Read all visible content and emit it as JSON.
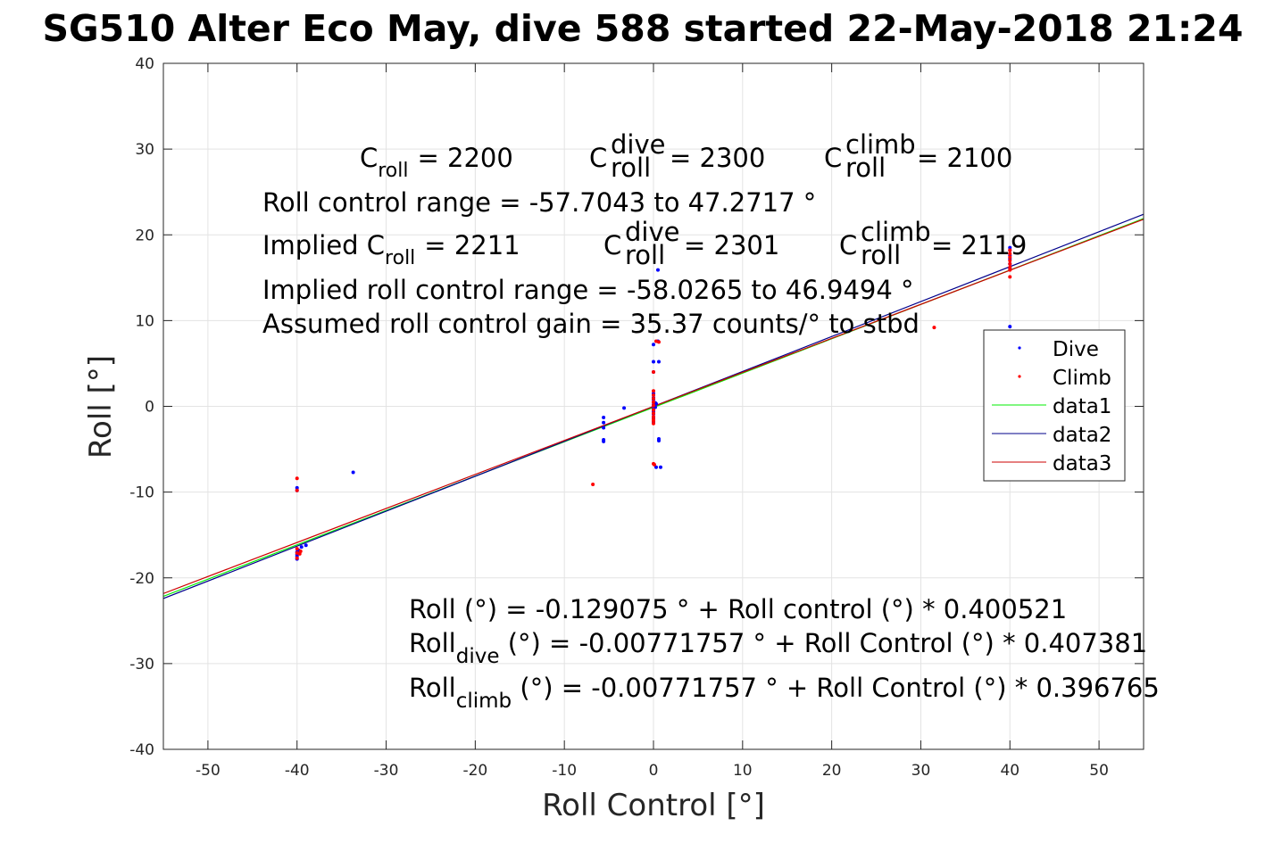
{
  "chart_data": {
    "type": "scatter",
    "title": "SG510 Alter Eco May, dive 588 started 22-May-2018 21:24",
    "xlabel": "Roll Control [°]",
    "ylabel": "Roll [°]",
    "xlim": [
      -55,
      55
    ],
    "ylim": [
      -40,
      40
    ],
    "xticks": [
      -50,
      -40,
      -30,
      -20,
      -10,
      0,
      10,
      20,
      30,
      40,
      50
    ],
    "yticks": [
      -40,
      -30,
      -20,
      -10,
      0,
      10,
      20,
      30,
      40
    ],
    "grid": true,
    "legend_position": "right",
    "series": [
      {
        "name": "Dive",
        "kind": "points",
        "color": "#0000ff",
        "x": [
          -40,
          -40,
          -40,
          -40,
          -40,
          -40,
          -39.8,
          -39.5,
          -39,
          -33.7,
          -5.6,
          -5.6,
          -5.6,
          -5.6,
          -5.6,
          -3.3,
          0,
          0,
          0,
          0,
          0,
          0,
          0,
          0,
          0,
          0,
          0,
          0,
          0,
          0,
          0.2,
          0.2,
          0.3,
          0.3,
          0.5,
          0.5,
          0.6,
          0.6,
          0.6,
          0.8,
          40,
          40,
          40,
          40,
          40,
          40,
          40
        ],
        "y": [
          -17.5,
          -17.8,
          -17.3,
          -17.0,
          -9.5,
          -9.8,
          -16.8,
          -16.4,
          -16.2,
          -7.7,
          -1.3,
          -1.9,
          -2.5,
          -3.9,
          -4.1,
          -0.2,
          0.5,
          0.2,
          -0.3,
          -0.9,
          -1.4,
          -1.8,
          1.0,
          0.8,
          1.5,
          4.0,
          5.2,
          7.2,
          -0.6,
          0.1,
          -0.1,
          0.4,
          -7.1,
          0.3,
          7.6,
          15.9,
          5.2,
          -3.8,
          -4.0,
          -7.1,
          18.5,
          18.2,
          17.6,
          17.2,
          16.6,
          16.1,
          9.3
        ]
      },
      {
        "name": "Climb",
        "kind": "points",
        "color": "#ff0000",
        "x": [
          -40,
          -40,
          -40,
          -40,
          -40,
          -39.7,
          -39.6,
          -6.8,
          0,
          0,
          0,
          0,
          0,
          0,
          0,
          0,
          0,
          0,
          0,
          0,
          0,
          0.1,
          0.3,
          0.6,
          31.5,
          40,
          40,
          40,
          40,
          40,
          40,
          40,
          40
        ],
        "y": [
          -8.4,
          -9.8,
          -16.6,
          -17.1,
          -17.7,
          -17.2,
          -16.9,
          -9.1,
          1.8,
          1.3,
          0.9,
          0.5,
          0.1,
          -0.4,
          -0.8,
          -1.2,
          -1.7,
          -2.0,
          -1.5,
          4.0,
          -6.7,
          -6.8,
          7.6,
          7.5,
          9.2,
          18.2,
          17.8,
          17.4,
          17.0,
          16.6,
          16.2,
          15.9,
          15.1
        ]
      },
      {
        "name": "data1",
        "kind": "line",
        "color": "#00ee00",
        "intercept": -0.129075,
        "slope": 0.400521
      },
      {
        "name": "data2",
        "kind": "line",
        "color": "#00008b",
        "intercept": -0.00771757,
        "slope": 0.407381
      },
      {
        "name": "data3",
        "kind": "line",
        "color": "#cc0000",
        "intercept": -0.00771757,
        "slope": 0.396765
      }
    ],
    "annotations": {
      "c_roll": {
        "base": "C",
        "sub": "roll",
        "value": "= 2200"
      },
      "c_roll_dive": {
        "base": "C",
        "sup": "dive",
        "sub": "roll",
        "value": "= 2300"
      },
      "c_roll_climb": {
        "base": "C",
        "sup": "climb",
        "sub": "roll",
        "value": "= 2100"
      },
      "range": "Roll control range = -57.7043 to 47.2717 °",
      "implied_prefix": "Implied C",
      "implied_sub": "roll",
      "implied_value": "= 2211",
      "implied_dive": {
        "base": "C",
        "sup": "dive",
        "sub": "roll",
        "value": "= 2301"
      },
      "implied_climb": {
        "base": "C",
        "sup": "climb",
        "sub": "roll",
        "value": "= 2119"
      },
      "implied_range": "Implied roll control range = -58.0265 to 46.9494 °",
      "gain": "Assumed roll control gain = 35.37 counts/° to stbd",
      "fit_all": "Roll (°) = -0.129075 ° + Roll control (°) * 0.400521",
      "fit_dive_base": "Roll",
      "fit_dive_sub": "dive",
      "fit_dive_rest": " (°) = -0.00771757 ° + Roll Control (°) * 0.407381",
      "fit_climb_base": "Roll",
      "fit_climb_sub": "climb",
      "fit_climb_rest": " (°) = -0.00771757 ° + Roll Control (°) * 0.396765"
    }
  }
}
